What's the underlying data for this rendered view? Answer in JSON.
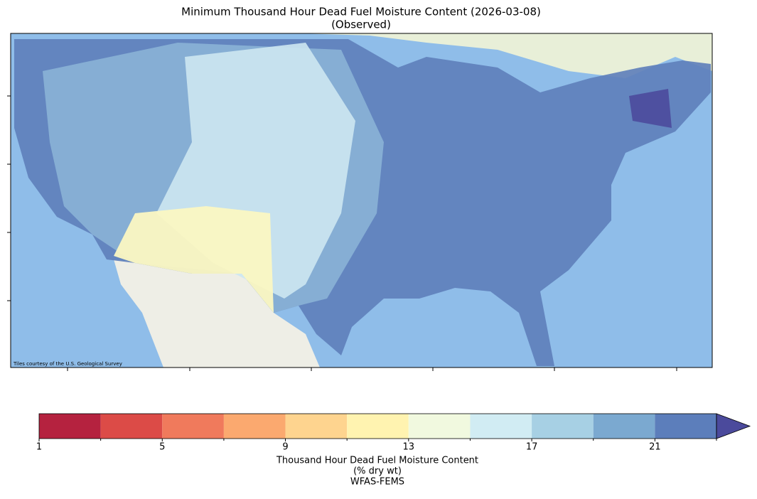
{
  "title": "Minimum Thousand Hour Dead Fuel Moisture Content (2026-03-08)",
  "subtitle": "(Observed)",
  "attribution": "Tiles courtesy of the U.S. Geological Survey",
  "colorbar": {
    "bounds": [
      1,
      3,
      5,
      7,
      9,
      11,
      13,
      15,
      17,
      19,
      21,
      23
    ],
    "colors": [
      "#b5223f",
      "#dc4b47",
      "#f07a5c",
      "#fba96f",
      "#fed48f",
      "#fff3b0",
      "#f1f9df",
      "#d1ecf3",
      "#a7d0e4",
      "#7ba9d0",
      "#5c7ebb"
    ],
    "extend_color": "#4b4a9c",
    "ticks": [
      1,
      5,
      9,
      13,
      17,
      21
    ],
    "minor_ticks": [
      3,
      7,
      11,
      15,
      19,
      23
    ],
    "label_lines": [
      "Thousand Hour Dead Fuel Moisture Content",
      "(% dry wt)",
      "WFAS-FEMS"
    ]
  }
}
